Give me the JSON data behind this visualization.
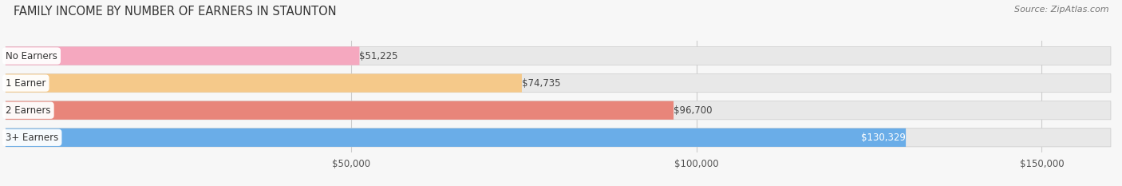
{
  "title": "FAMILY INCOME BY NUMBER OF EARNERS IN STAUNTON",
  "source": "Source: ZipAtlas.com",
  "categories": [
    "No Earners",
    "1 Earner",
    "2 Earners",
    "3+ Earners"
  ],
  "values": [
    51225,
    74735,
    96700,
    130329
  ],
  "bar_colors": [
    "#f5a8bf",
    "#f5c98a",
    "#e8857a",
    "#6aade8"
  ],
  "value_labels": [
    "$51,225",
    "$74,735",
    "$96,700",
    "$130,329"
  ],
  "value_label_inside": [
    false,
    false,
    false,
    true
  ],
  "xlim": [
    0,
    160000
  ],
  "xticks": [
    50000,
    100000,
    150000
  ],
  "xtick_labels": [
    "$50,000",
    "$100,000",
    "$150,000"
  ],
  "bar_bg_color": "#e8e8e8",
  "fig_bg_color": "#f7f7f7",
  "title_fontsize": 10.5,
  "bar_height": 0.68,
  "figsize": [
    14.06,
    2.33
  ]
}
